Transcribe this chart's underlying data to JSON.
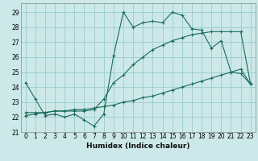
{
  "xlabel": "Humidex (Indice chaleur)",
  "background_color": "#cce8e8",
  "grid_color": "#99cccc",
  "line_color": "#1a6b5a",
  "xlim": [
    -0.5,
    23.5
  ],
  "ylim": [
    21,
    29.6
  ],
  "xticks": [
    0,
    1,
    2,
    3,
    4,
    5,
    6,
    7,
    8,
    9,
    10,
    11,
    12,
    13,
    14,
    15,
    16,
    17,
    18,
    19,
    20,
    21,
    22,
    23
  ],
  "yticks": [
    21,
    22,
    23,
    24,
    25,
    26,
    27,
    28,
    29
  ],
  "line1_x": [
    0,
    1,
    2,
    3,
    4,
    5,
    6,
    7,
    8,
    9,
    10,
    11,
    12,
    13,
    14,
    15,
    16,
    17,
    18,
    19,
    20,
    21,
    22,
    23
  ],
  "line1_y": [
    24.3,
    23.2,
    22.1,
    22.2,
    22.0,
    22.2,
    21.8,
    21.4,
    22.2,
    26.1,
    29.0,
    28.0,
    28.3,
    28.4,
    28.3,
    29.0,
    28.8,
    27.9,
    27.8,
    26.6,
    27.1,
    25.0,
    24.9,
    24.2
  ],
  "line2_x": [
    0,
    1,
    2,
    3,
    4,
    5,
    6,
    7,
    8,
    9,
    10,
    11,
    12,
    13,
    14,
    15,
    16,
    17,
    18,
    19,
    20,
    21,
    22,
    23
  ],
  "line2_y": [
    22.1,
    22.2,
    22.3,
    22.4,
    22.4,
    22.5,
    22.5,
    22.6,
    22.7,
    22.8,
    23.0,
    23.1,
    23.3,
    23.4,
    23.6,
    23.8,
    24.0,
    24.2,
    24.4,
    24.6,
    24.8,
    25.0,
    25.2,
    24.2
  ],
  "line3_x": [
    0,
    1,
    2,
    3,
    4,
    5,
    6,
    7,
    8,
    9,
    10,
    11,
    12,
    13,
    14,
    15,
    16,
    17,
    18,
    19,
    20,
    21,
    22,
    23
  ],
  "line3_y": [
    22.3,
    22.3,
    22.3,
    22.4,
    22.4,
    22.4,
    22.4,
    22.5,
    23.2,
    24.3,
    24.8,
    25.5,
    26.0,
    26.5,
    26.8,
    27.1,
    27.3,
    27.5,
    27.6,
    27.7,
    27.7,
    27.7,
    27.7,
    24.2
  ]
}
